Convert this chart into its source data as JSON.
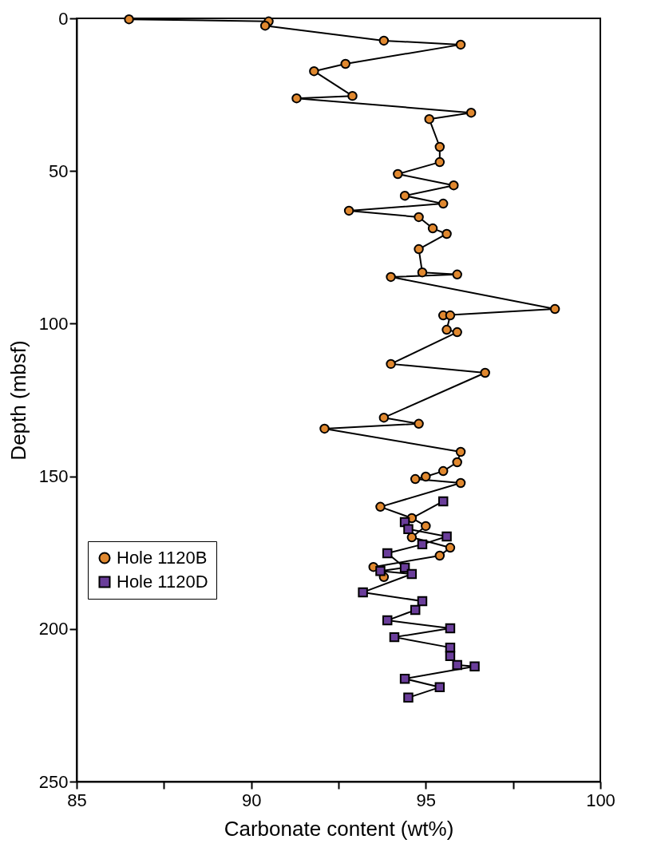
{
  "chart_data": {
    "type": "line",
    "xlabel": "Carbonate content (wt%)",
    "ylabel": "Depth (mbsf)",
    "xlim": [
      85,
      100
    ],
    "xticks": [
      85,
      {
        "value": 87.5,
        "label": null
      },
      90,
      {
        "value": 92.5,
        "label": null
      },
      95,
      {
        "value": 97.5,
        "label": null
      },
      100
    ],
    "ylim": [
      250,
      0
    ],
    "yticks": [
      0,
      50,
      100,
      150,
      200,
      250
    ],
    "grid": false,
    "legend": "left",
    "line_style": "solid",
    "series": [
      {
        "name": "Hole 1120B",
        "color": "#e0882f",
        "marker": "circle",
        "x": [
          86.5,
          90.5,
          90.4,
          93.8,
          96.0,
          92.7,
          91.8,
          92.9,
          91.3,
          96.3,
          95.1,
          95.4,
          95.4,
          94.2,
          95.8,
          94.4,
          95.5,
          92.8,
          94.8,
          95.2,
          95.6,
          94.8,
          94.9,
          95.9,
          94.0,
          98.7,
          95.5,
          95.7,
          95.6,
          95.9,
          94.0,
          96.7,
          93.8,
          94.8,
          92.1,
          96.0,
          95.9,
          95.5,
          95.0,
          94.7,
          96.0,
          93.7,
          94.6,
          95.0,
          94.6,
          95.7,
          95.4,
          93.5,
          93.8
        ],
        "values": [
          0.3,
          1,
          2.4,
          7.3,
          8.6,
          14.9,
          17.3,
          25.4,
          26.2,
          30.9,
          33.0,
          42.1,
          47.1,
          51.0,
          54.7,
          58.1,
          60.7,
          63.0,
          65.1,
          68.8,
          70.6,
          75.6,
          83.2,
          83.9,
          84.7,
          95.2,
          97.3,
          97.3,
          102.0,
          102.8,
          113.2,
          116.1,
          130.8,
          132.8,
          134.4,
          142.0,
          145.4,
          148.3,
          150.1,
          150.9,
          152.2,
          160.0,
          163.7,
          166.3,
          170.0,
          173.4,
          176.0,
          179.7,
          183.0
        ]
      },
      {
        "name": "Hole 1120D",
        "color": "#6a3d9a",
        "marker": "square",
        "x": [
          95.5,
          94.4,
          94.5,
          95.6,
          94.9,
          93.9,
          94.4,
          93.7,
          94.6,
          93.2,
          94.9,
          94.7,
          93.9,
          95.7,
          94.1,
          95.7,
          95.7,
          95.9,
          96.4,
          94.4,
          95.4,
          94.5
        ],
        "values": [
          158.2,
          165.0,
          167.3,
          169.7,
          172.3,
          175.2,
          179.9,
          181.0,
          182.0,
          188.0,
          190.9,
          193.8,
          197.2,
          199.8,
          202.7,
          206.1,
          208.9,
          211.8,
          212.3,
          216.3,
          219.1,
          222.5
        ]
      }
    ]
  }
}
